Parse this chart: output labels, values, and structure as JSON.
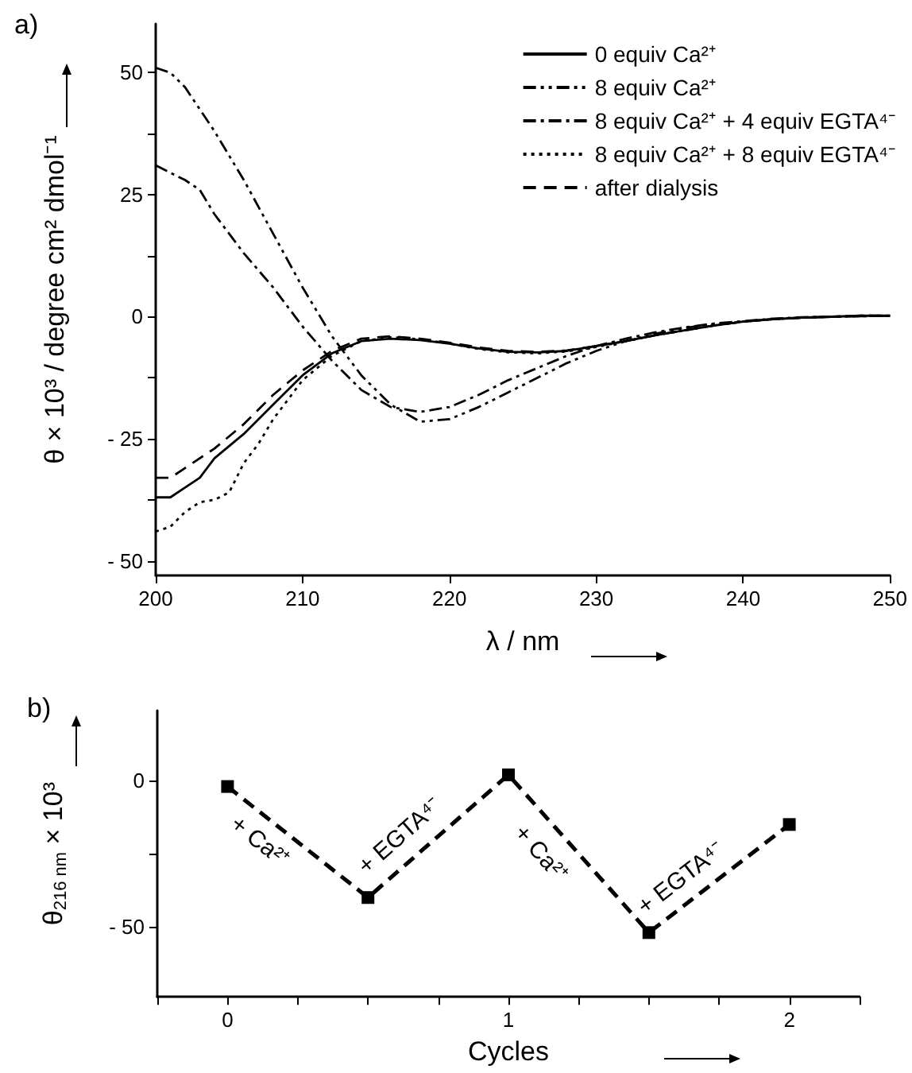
{
  "chart_data": [
    {
      "type": "line",
      "title": "a)",
      "xlabel": "λ / nm",
      "ylabel": "θ × 10³ / degree cm² dmol⁻¹",
      "legend": "top right",
      "xlim": [
        200,
        250
      ],
      "ylim": [
        -53,
        60
      ],
      "xticks": [
        200,
        210,
        220,
        230,
        240,
        250
      ],
      "yticks": [
        {
          "value": -50,
          "label": "- 50"
        },
        {
          "value": -37.5,
          "label": null
        },
        {
          "value": -25,
          "label": "- 25"
        },
        {
          "value": -12.5,
          "label": null
        },
        0,
        {
          "value": 12.5,
          "label": null
        },
        25,
        {
          "value": 37.5,
          "label": null
        },
        50
      ],
      "series": [
        {
          "name": "0 equiv Ca²⁺",
          "color": "#000000",
          "line_style": "solid",
          "x": [
            200,
            201,
            202,
            203,
            204,
            206,
            208,
            210,
            212,
            214,
            216,
            218,
            220,
            222,
            224,
            226,
            228,
            230,
            232,
            234,
            236,
            238,
            240,
            242,
            244,
            246,
            248,
            250
          ],
          "values": [
            -37,
            -37,
            -35,
            -33,
            -29,
            -24,
            -18,
            -12,
            -7.5,
            -5,
            -4.5,
            -4.8,
            -5.5,
            -6.5,
            -7.2,
            -7.3,
            -7,
            -6,
            -5,
            -3.8,
            -2.8,
            -1.8,
            -1,
            -0.5,
            -0.2,
            0,
            0.2,
            0.2
          ]
        },
        {
          "name": "8 equiv Ca²⁺",
          "color": "#000000",
          "line_style": "dashdotdot",
          "x": [
            200,
            201,
            202,
            204,
            206,
            208,
            210,
            212,
            214,
            216,
            218,
            220,
            222,
            224,
            226,
            228,
            230,
            232,
            234,
            236,
            238,
            240,
            242,
            244,
            246,
            248,
            250
          ],
          "values": [
            51,
            50,
            47,
            38,
            28,
            17,
            6,
            -4,
            -12,
            -18,
            -21.5,
            -21,
            -18.5,
            -15.5,
            -12.5,
            -9.5,
            -7,
            -5,
            -3.5,
            -2.3,
            -1.5,
            -1,
            -0.5,
            -0.2,
            0,
            0.1,
            0.2
          ]
        },
        {
          "name": "8 equiv Ca²⁺ + 4 equiv EGTA⁴⁻",
          "color": "#000000",
          "line_style": "dashdot",
          "x": [
            200,
            201,
            202,
            203,
            204,
            206,
            208,
            210,
            212,
            214,
            216,
            218,
            220,
            222,
            224,
            226,
            228,
            230,
            232,
            234,
            236,
            238,
            240,
            242,
            244,
            246,
            248,
            250
          ],
          "values": [
            31,
            29.5,
            28,
            26,
            21,
            13,
            6,
            -2,
            -9,
            -15,
            -18.5,
            -19.5,
            -18.5,
            -16,
            -13,
            -10.5,
            -8,
            -6,
            -4.5,
            -3.2,
            -2.2,
            -1.4,
            -0.9,
            -0.4,
            -0.1,
            0,
            0.1,
            0.2
          ]
        },
        {
          "name": "8 equiv Ca²⁺ + 8 equiv EGTA⁴⁻",
          "color": "#000000",
          "line_style": "dotted",
          "x": [
            200,
            201,
            202,
            203,
            204,
            205,
            206,
            207,
            208,
            210,
            212,
            214,
            216,
            218,
            220,
            222,
            224,
            226,
            228,
            230,
            232,
            234,
            236,
            238,
            240,
            242,
            244,
            246,
            248,
            250
          ],
          "values": [
            -44,
            -43,
            -40,
            -38,
            -37.5,
            -36,
            -30,
            -26,
            -21,
            -13,
            -8,
            -5,
            -4.2,
            -4.6,
            -5.5,
            -6.6,
            -7.3,
            -7.5,
            -7.1,
            -6.2,
            -5,
            -3.8,
            -2.8,
            -1.8,
            -1,
            -0.5,
            -0.2,
            0,
            0.2,
            0.2
          ]
        },
        {
          "name": "after dialysis",
          "color": "#000000",
          "line_style": "dashed",
          "x": [
            200,
            201,
            202,
            204,
            206,
            208,
            210,
            212,
            214,
            216,
            218,
            220,
            222,
            224,
            226,
            228,
            230,
            232,
            234,
            236,
            238,
            240,
            242,
            244,
            246,
            248,
            250
          ],
          "values": [
            -33,
            -33,
            -31,
            -27,
            -22,
            -16,
            -11,
            -7,
            -4.5,
            -4,
            -4.5,
            -5.3,
            -6.3,
            -7,
            -7.2,
            -6.9,
            -6,
            -5,
            -3.8,
            -2.8,
            -1.8,
            -1,
            -0.5,
            -0.2,
            0,
            0.2,
            0.2
          ]
        }
      ]
    },
    {
      "type": "line",
      "title": "b)",
      "xlabel": "Cycles",
      "ylabel": "θ$_{216 nm}$ × 10³",
      "marker": "square",
      "line_style": "dashed",
      "xlim": [
        -0.25,
        2.25
      ],
      "ylim": [
        -74,
        24
      ],
      "xticks": [
        {
          "value": -0.25,
          "label": null
        },
        0,
        {
          "value": 0.25,
          "label": null
        },
        {
          "value": 0.5,
          "label": null
        },
        {
          "value": 0.75,
          "label": null
        },
        1,
        {
          "value": 1.25,
          "label": null
        },
        {
          "value": 1.5,
          "label": null
        },
        {
          "value": 1.75,
          "label": null
        },
        2,
        {
          "value": 2.25,
          "label": null
        }
      ],
      "yticks": [
        {
          "value": -50,
          "label": "- 50"
        },
        {
          "value": -25,
          "label": null
        },
        0
      ],
      "x": [
        0,
        0.5,
        1,
        1.5,
        2
      ],
      "values": [
        -2,
        -40,
        2,
        -52,
        -15
      ],
      "color": "#000000",
      "annotations": [
        "+ Ca²⁺",
        "+ EGTA⁴⁻",
        "+ Ca²⁺",
        "+ EGTA⁴⁻"
      ]
    }
  ]
}
